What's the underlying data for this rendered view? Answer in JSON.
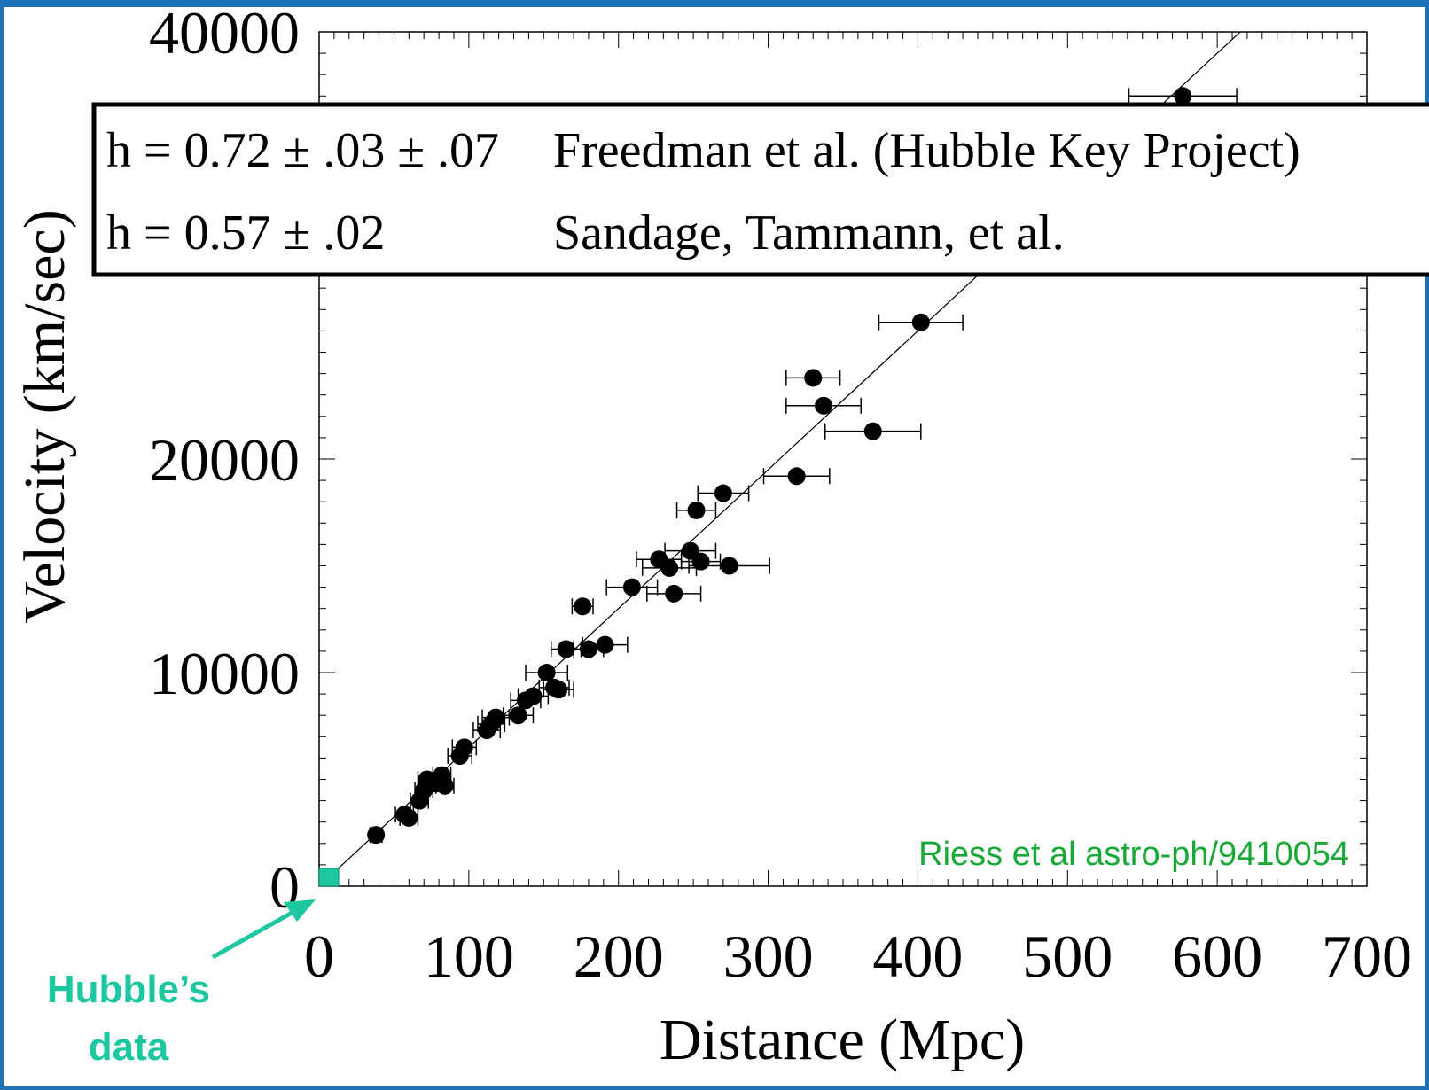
{
  "chart_data": {
    "type": "scatter",
    "title": "",
    "xlabel": "Distance (Mpc)",
    "ylabel": "Velocity (km/sec)",
    "xlim": [
      0,
      700
    ],
    "ylim": [
      0,
      40000
    ],
    "x_ticks": [
      "0",
      "100",
      "200",
      "300",
      "400",
      "500",
      "600",
      "700"
    ],
    "y_ticks": [
      "0",
      "10000",
      "20000",
      "40000"
    ],
    "y_tick_values": [
      0,
      10000,
      20000,
      40000
    ],
    "x_tick_values": [
      0,
      100,
      200,
      300,
      400,
      500,
      600,
      700
    ],
    "fit_line": {
      "slope": 65,
      "intercept": 0
    },
    "series": [
      {
        "points": [
          {
            "x": 38,
            "y": 2400,
            "xerr": 4
          },
          {
            "x": 57,
            "y": 3350,
            "xerr": 6
          },
          {
            "x": 60,
            "y": 3200,
            "xerr": 6
          },
          {
            "x": 67,
            "y": 4000,
            "xerr": 6
          },
          {
            "x": 70,
            "y": 4500,
            "xerr": 6
          },
          {
            "x": 72,
            "y": 5000,
            "xerr": 6
          },
          {
            "x": 78,
            "y": 4800,
            "xerr": 6
          },
          {
            "x": 82,
            "y": 5200,
            "xerr": 6
          },
          {
            "x": 84,
            "y": 4700,
            "xerr": 6
          },
          {
            "x": 94,
            "y": 6100,
            "xerr": 8
          },
          {
            "x": 97,
            "y": 6500,
            "xerr": 8
          },
          {
            "x": 112,
            "y": 7300,
            "xerr": 9
          },
          {
            "x": 115,
            "y": 7600,
            "xerr": 9
          },
          {
            "x": 118,
            "y": 7900,
            "xerr": 9
          },
          {
            "x": 133,
            "y": 8000,
            "xerr": 10
          },
          {
            "x": 138,
            "y": 8700,
            "xerr": 10
          },
          {
            "x": 143,
            "y": 8900,
            "xerr": 10
          },
          {
            "x": 152,
            "y": 10000,
            "xerr": 14
          },
          {
            "x": 157,
            "y": 9300,
            "xerr": 10
          },
          {
            "x": 160,
            "y": 9200,
            "xerr": 10
          },
          {
            "x": 165,
            "y": 11100,
            "xerr": 10
          },
          {
            "x": 176,
            "y": 13100,
            "xerr": 7
          },
          {
            "x": 180,
            "y": 11100,
            "xerr": 10
          },
          {
            "x": 191,
            "y": 11300,
            "xerr": 15
          },
          {
            "x": 209,
            "y": 14000,
            "xerr": 17
          },
          {
            "x": 227,
            "y": 15300,
            "xerr": 15
          },
          {
            "x": 234,
            "y": 14900,
            "xerr": 18
          },
          {
            "x": 237,
            "y": 13700,
            "xerr": 18
          },
          {
            "x": 248,
            "y": 15700,
            "xerr": 17
          },
          {
            "x": 252,
            "y": 17600,
            "xerr": 13
          },
          {
            "x": 255,
            "y": 15200,
            "xerr": 13
          },
          {
            "x": 270,
            "y": 18400,
            "xerr": 17
          },
          {
            "x": 274,
            "y": 15000,
            "xerr": 27
          },
          {
            "x": 319,
            "y": 19200,
            "xerr": 22
          },
          {
            "x": 330,
            "y": 23800,
            "xerr": 18
          },
          {
            "x": 337,
            "y": 22500,
            "xerr": 25
          },
          {
            "x": 370,
            "y": 21300,
            "xerr": 32
          },
          {
            "x": 402,
            "y": 26400,
            "xerr": 28
          },
          {
            "x": 577,
            "y": 37000,
            "xerr": 36
          }
        ]
      }
    ],
    "annotations": [
      "Riess et al astro-ph/9410054",
      "Hubble’s",
      "data"
    ]
  },
  "legend_box": {
    "row1_label": "h = 0.72 ± .03 ± .07",
    "row1_text": "Freedman et al. (Hubble Key Project)",
    "row2_label": "h = 0.57 ± .02",
    "row2_text": "Sandage, Tammann, et al."
  },
  "colors": {
    "frame": "#1e73b8",
    "annotation_green": "#18a838",
    "hubble_teal": "#1dc7a0",
    "marker": "#000000"
  }
}
